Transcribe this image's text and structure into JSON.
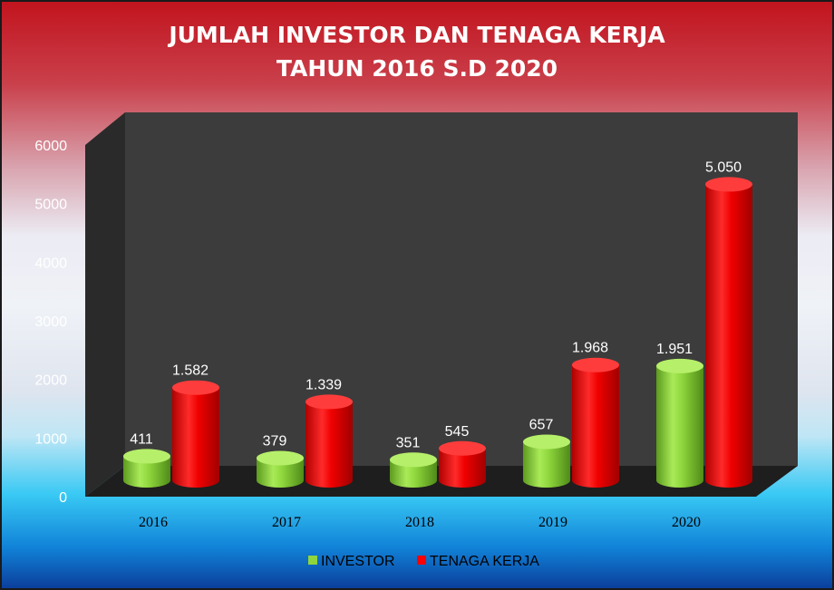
{
  "chart_data": {
    "type": "bar",
    "title_lines": [
      "JUMLAH INVESTOR DAN TENAGA KERJA",
      "TAHUN 2016 S.D 2020"
    ],
    "categories": [
      "2016",
      "2017",
      "2018",
      "2019",
      "2020"
    ],
    "series": [
      {
        "name": "INVESTOR",
        "color": "#8ed63c",
        "values": [
          411,
          379,
          351,
          657,
          1951
        ],
        "labels": [
          "411",
          "379",
          "351",
          "657",
          "1.951"
        ]
      },
      {
        "name": "TENAGA KERJA",
        "color": "#ff0000",
        "values": [
          1582,
          1339,
          545,
          1968,
          5050
        ],
        "labels": [
          "1.582",
          "1.339",
          "545",
          "1.968",
          "5.050"
        ]
      }
    ],
    "ylim": [
      0,
      6000
    ],
    "yticks": [
      "0",
      "1000",
      "2000",
      "3000",
      "4000",
      "5000",
      "6000"
    ],
    "xlabel": "",
    "ylabel": "",
    "legend_position": "bottom",
    "grid": false,
    "bar_shape": "3d-cylinder",
    "plot_background": "#3a3a3a"
  }
}
